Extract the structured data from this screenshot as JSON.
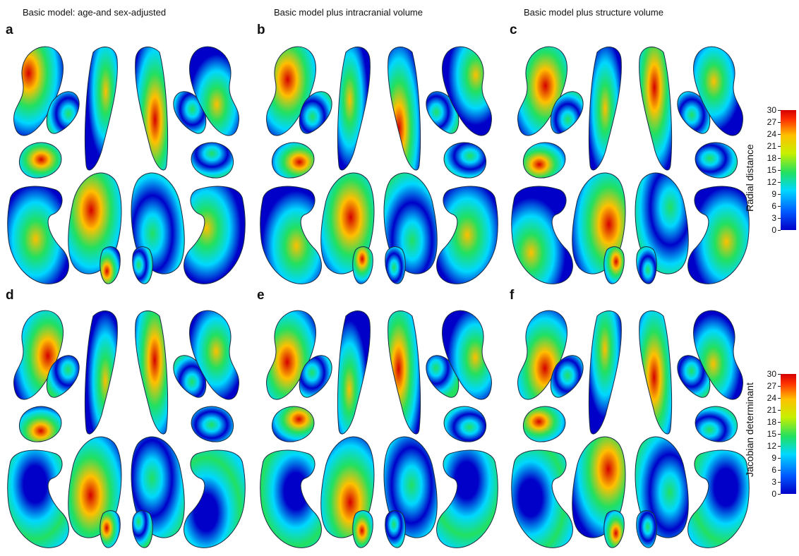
{
  "columns": [
    {
      "title": "Basic model: age-and sex-adjusted"
    },
    {
      "title": "Basic model plus intracranial volume"
    },
    {
      "title": "Basic model plus structure volume"
    }
  ],
  "panels": [
    {
      "letter": "a"
    },
    {
      "letter": "b"
    },
    {
      "letter": "c"
    },
    {
      "letter": "d"
    },
    {
      "letter": "e"
    },
    {
      "letter": "f"
    }
  ],
  "colorbars": [
    {
      "label": "Radial distance",
      "ticks": [
        "0",
        "3",
        "6",
        "9",
        "12",
        "15",
        "18",
        "21",
        "24",
        "27",
        "30"
      ],
      "colors": [
        "#0000c8",
        "#00d8ff",
        "#22e060",
        "#ffc000",
        "#d40000"
      ]
    },
    {
      "label": "Jacobian determinant",
      "ticks": [
        "0",
        "3",
        "6",
        "9",
        "12",
        "15",
        "18",
        "21",
        "24",
        "27",
        "30"
      ],
      "colors": [
        "#0000c8",
        "#00d8ff",
        "#22e060",
        "#ffc000",
        "#d40000"
      ]
    }
  ]
}
